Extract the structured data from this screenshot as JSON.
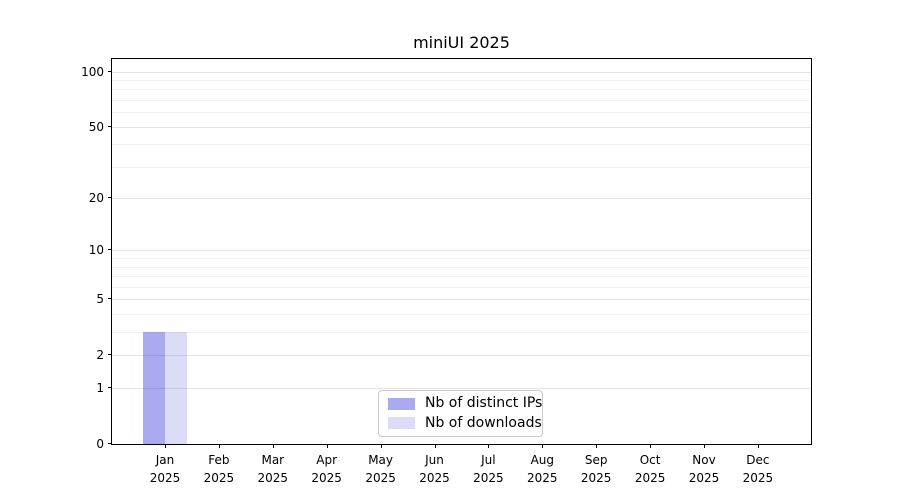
{
  "page": {
    "background": "#ffffff"
  },
  "chart_data": {
    "type": "bar",
    "title": "miniUI 2025",
    "categories": [
      "Jan 2025",
      "Feb 2025",
      "Mar 2025",
      "Apr 2025",
      "May 2025",
      "Jun 2025",
      "Jul 2025",
      "Aug 2025",
      "Sep 2025",
      "Oct 2025",
      "Nov 2025",
      "Dec 2025"
    ],
    "series": [
      {
        "name": "Nb of distinct IPs",
        "color": "#aaaaf0",
        "values": [
          3,
          0,
          0,
          0,
          0,
          0,
          0,
          0,
          0,
          0,
          0,
          0
        ]
      },
      {
        "name": "Nb of downloads",
        "color": "#dcdcf8",
        "values": [
          3,
          0,
          0,
          0,
          0,
          0,
          0,
          0,
          0,
          0,
          0,
          0
        ]
      }
    ],
    "xlabel": "",
    "ylabel": "",
    "yscale": "log1p",
    "ylim": [
      0,
      117
    ],
    "yticks_major": [
      0,
      1,
      2,
      5,
      10,
      20,
      50,
      100
    ],
    "yticks_minor": [
      3,
      4,
      6,
      7,
      8,
      9,
      30,
      40,
      60,
      70,
      80,
      90
    ],
    "grid": "both",
    "legend_position": "lower center",
    "bar_values_jan_2025": {
      "distinct_ips": 3,
      "downloads": 3
    }
  }
}
